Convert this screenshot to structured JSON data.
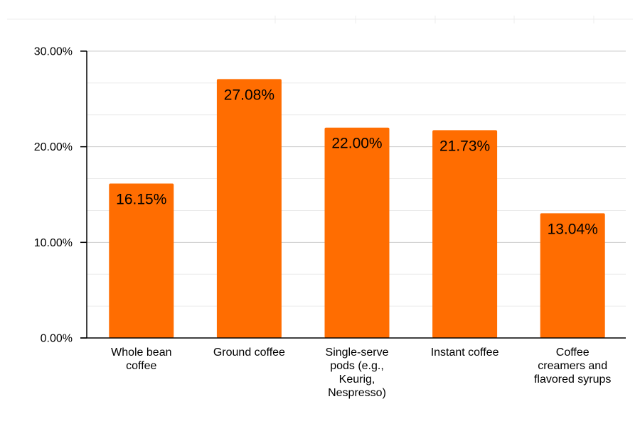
{
  "chart_data": {
    "type": "bar",
    "title": "",
    "xlabel": "",
    "ylabel": "",
    "categories": [
      [
        "Whole bean",
        "coffee"
      ],
      [
        "Ground coffee"
      ],
      [
        "Single-serve",
        "pods (e.g.,",
        "Keurig,",
        "Nespresso)"
      ],
      [
        "Instant coffee"
      ],
      [
        "Coffee",
        "creamers and",
        "flavored syrups"
      ]
    ],
    "values": [
      16.15,
      27.08,
      22.0,
      21.73,
      13.04
    ],
    "data_labels": [
      "16.15%",
      "27.08%",
      "22.00%",
      "21.73%",
      "13.04%"
    ],
    "ylim": [
      0,
      30
    ],
    "yticks": [
      0,
      10,
      20,
      30
    ],
    "ytick_labels": [
      "0.00%",
      "10.00%",
      "20.00%",
      "30.00%"
    ],
    "grid": true,
    "legend": "none",
    "colors": {
      "bar": "#ff6d01",
      "major_grid": "#cccccc",
      "minor_grid": "#ebebeb",
      "axis": "#000000"
    }
  }
}
